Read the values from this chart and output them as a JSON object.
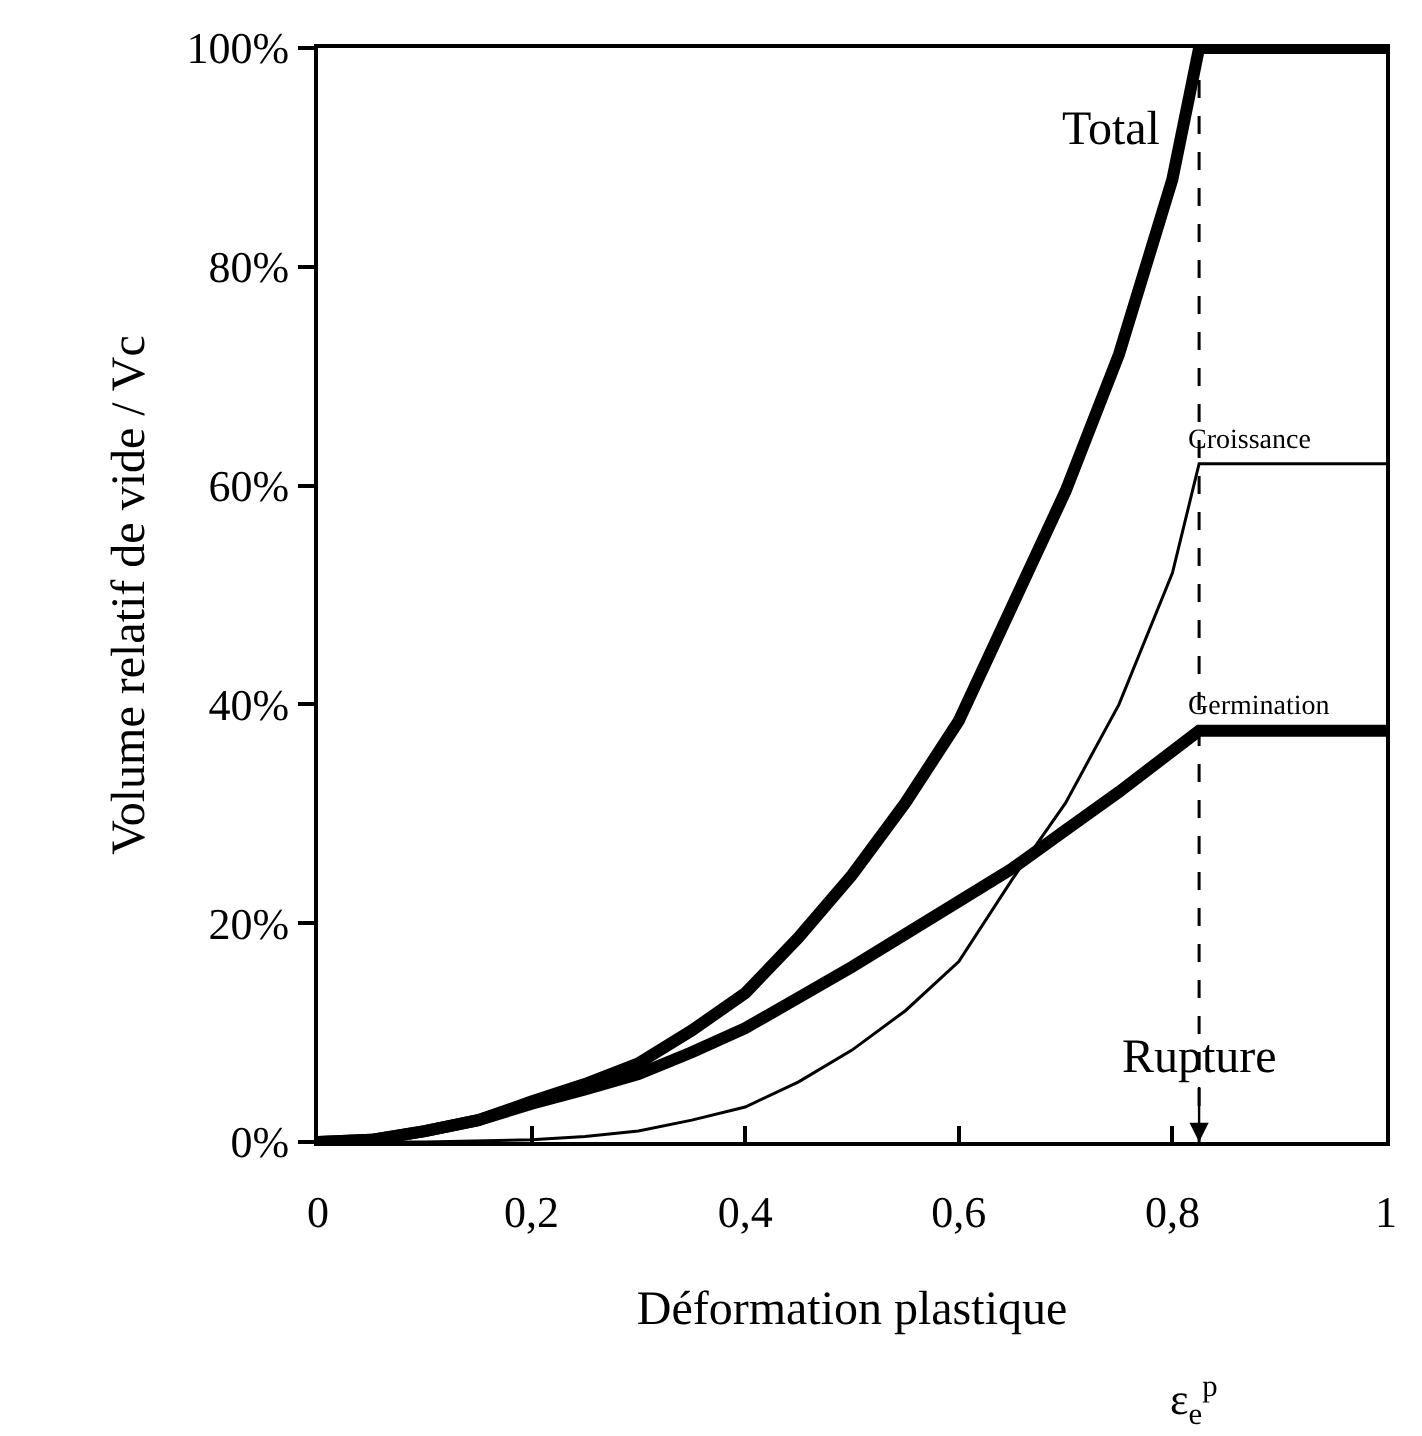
{
  "chart_data": {
    "type": "line",
    "xlabel": "Déformation plastique",
    "ylabel": "Volume relatif de vide / Vc",
    "annotations": [
      "ε$_{e}$$^{p}$"
    ],
    "series": [
      {
        "name": "Total",
        "color": "#000000",
        "x": [
          0,
          0.05,
          0.1,
          0.15,
          0.2,
          0.25,
          0.3,
          0.35,
          0.4,
          0.45,
          0.5,
          0.55,
          0.6,
          0.65,
          0.7,
          0.75,
          0.8,
          0.825,
          1
        ],
        "values": [
          0,
          0.2,
          1,
          2,
          3.7,
          5.3,
          7.2,
          10.2,
          13.6,
          18.7,
          24.4,
          31,
          38.5,
          49,
          59.5,
          72,
          88,
          100,
          100
        ]
      },
      {
        "name": "Croissance",
        "color": "#000000",
        "x": [
          0,
          0.1,
          0.2,
          0.25,
          0.3,
          0.35,
          0.4,
          0.45,
          0.5,
          0.55,
          0.6,
          0.65,
          0.7,
          0.75,
          0.8,
          0.825,
          1
        ],
        "values": [
          0,
          0,
          0.2,
          0.5,
          1,
          2,
          3.2,
          5.5,
          8.4,
          12,
          16.5,
          24,
          31,
          40,
          52,
          62,
          62
        ]
      },
      {
        "name": "Germination",
        "color": "#000000",
        "x": [
          0,
          0.05,
          0.1,
          0.15,
          0.2,
          0.25,
          0.3,
          0.35,
          0.4,
          0.45,
          0.5,
          0.55,
          0.6,
          0.65,
          0.7,
          0.75,
          0.825,
          1
        ],
        "values": [
          0,
          0.2,
          1,
          2,
          3.5,
          4.8,
          6.2,
          8.2,
          10.4,
          13.2,
          16,
          19,
          22,
          25,
          28.5,
          32,
          37.6,
          37.6
        ]
      }
    ],
    "xlim": [
      0,
      1
    ],
    "xticks": [
      0,
      {
        "value": 0.2,
        "label": "0,2"
      },
      {
        "value": 0.4,
        "label": "0,4"
      },
      {
        "value": 0.6,
        "label": "0,6"
      },
      {
        "value": 0.8,
        "label": "0,8"
      },
      1
    ],
    "ylim": [
      0,
      100
    ],
    "yticks": [
      {
        "value": 0,
        "label": "0%"
      },
      {
        "value": 20,
        "label": "20%"
      },
      {
        "value": 40,
        "label": "40%"
      },
      {
        "value": 60,
        "label": "60%"
      },
      {
        "value": 80,
        "label": "80%"
      },
      {
        "value": 100,
        "label": "100%"
      }
    ],
    "ref_lines": [
      {
        "axis": "x",
        "value": 0.825,
        "label": "Rupture",
        "line_style": "dashed",
        "color": "#000000"
      }
    ],
    "grid": false,
    "legend": false,
    "marker": "none",
    "line_style": "solid"
  }
}
